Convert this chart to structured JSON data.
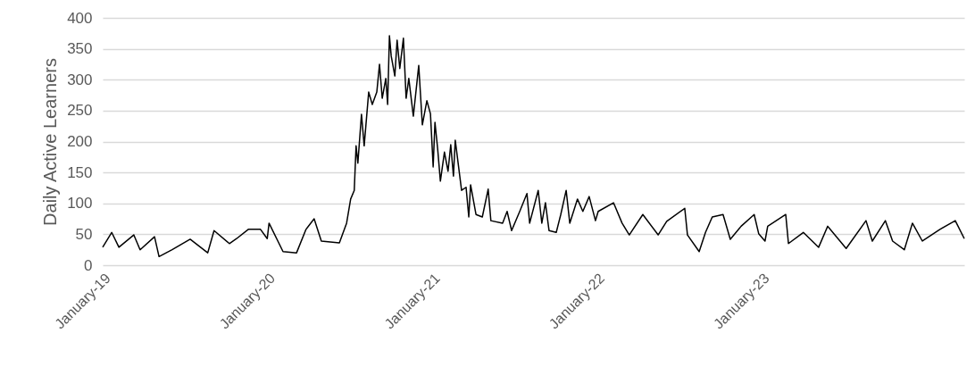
{
  "chart_data": {
    "type": "line",
    "ylabel": "Daily Active Learners",
    "xlim": [
      "2019-01-01",
      "2024-03-26"
    ],
    "ylim": [
      0,
      400
    ],
    "xticks": [
      {
        "value": "2019-01-01",
        "label": "January-19"
      },
      {
        "value": "2020-01-01",
        "label": "January-20"
      },
      {
        "value": "2021-01-01",
        "label": "January-21"
      },
      {
        "value": "2022-01-01",
        "label": "January-22"
      },
      {
        "value": "2023-01-01",
        "label": "January-23"
      }
    ],
    "yticks": [
      0,
      50,
      100,
      150,
      200,
      250,
      300,
      350,
      400
    ],
    "grid": "y",
    "marker": "none",
    "line_style": "solid",
    "x": [
      "2019-01-01",
      "2019-01-21",
      "2019-02-06",
      "2019-03-11",
      "2019-03-25",
      "2019-04-26",
      "2019-05-06",
      "2019-06-04",
      "2019-07-14",
      "2019-08-22",
      "2019-09-05",
      "2019-10-09",
      "2019-10-25",
      "2019-11-20",
      "2019-12-17",
      "2020-01-01",
      "2020-01-05",
      "2020-02-05",
      "2020-03-06",
      "2020-03-27",
      "2020-04-14",
      "2020-04-30",
      "2020-06-09",
      "2020-06-25",
      "2020-07-04",
      "2020-07-12",
      "2020-07-16",
      "2020-07-20",
      "2020-07-28",
      "2020-08-03",
      "2020-08-13",
      "2020-08-21",
      "2020-08-31",
      "2020-09-06",
      "2020-09-12",
      "2020-09-20",
      "2020-09-24",
      "2020-09-28",
      "2020-10-02",
      "2020-10-10",
      "2020-10-15",
      "2020-10-21",
      "2020-10-29",
      "2020-11-04",
      "2020-11-10",
      "2020-11-20",
      "2020-12-02",
      "2020-12-10",
      "2020-12-20",
      "2020-12-28",
      "2021-01-03",
      "2021-01-07",
      "2021-01-13",
      "2021-01-19",
      "2021-01-28",
      "2021-02-05",
      "2021-02-11",
      "2021-02-17",
      "2021-02-21",
      "2021-03-07",
      "2021-03-17",
      "2021-03-23",
      "2021-03-27",
      "2021-04-08",
      "2021-04-22",
      "2021-05-05",
      "2021-05-11",
      "2021-06-06",
      "2021-06-16",
      "2021-06-26",
      "2021-07-14",
      "2021-07-30",
      "2021-08-05",
      "2021-08-24",
      "2021-09-01",
      "2021-09-09",
      "2021-09-17",
      "2021-10-03",
      "2021-10-13",
      "2021-10-25",
      "2021-11-02",
      "2021-11-19",
      "2021-12-01",
      "2021-12-15",
      "2021-12-29",
      "2022-01-04",
      "2022-02-07",
      "2022-02-26",
      "2022-03-14",
      "2022-04-13",
      "2022-05-17",
      "2022-06-05",
      "2022-07-15",
      "2022-07-21",
      "2022-08-16",
      "2022-08-30",
      "2022-09-14",
      "2022-10-08",
      "2022-10-24",
      "2022-11-17",
      "2022-12-16",
      "2022-12-26",
      "2023-01-09",
      "2023-01-15",
      "2023-02-24",
      "2023-03-02",
      "2023-04-04",
      "2023-05-08",
      "2023-05-28",
      "2023-07-08",
      "2023-08-21",
      "2023-09-04",
      "2023-10-03",
      "2023-10-19",
      "2023-11-14",
      "2023-12-02",
      "2023-12-24",
      "2024-02-01",
      "2024-03-06",
      "2024-03-26"
    ],
    "series": [
      {
        "color": "#000000",
        "values": [
          29,
          53,
          29,
          49,
          25,
          46,
          14,
          25,
          42,
          20,
          56,
          35,
          43,
          58,
          58,
          43,
          68,
          22,
          20,
          58,
          75,
          39,
          36,
          68,
          107,
          121,
          193,
          165,
          244,
          193,
          280,
          260,
          280,
          325,
          270,
          302,
          260,
          371,
          338,
          306,
          364,
          318,
          367,
          270,
          302,
          241,
          323,
          227,
          266,
          245,
          159,
          231,
          188,
          136,
          183,
          152,
          195,
          144,
          202,
          121,
          126,
          78,
          130,
          82,
          78,
          123,
          72,
          68,
          87,
          56,
          87,
          116,
          68,
          121,
          68,
          101,
          56,
          53,
          82,
          121,
          68,
          107,
          87,
          111,
          72,
          87,
          101,
          68,
          49,
          82,
          49,
          71,
          92,
          49,
          22,
          53,
          78,
          82,
          42,
          63,
          82,
          51,
          39,
          63,
          82,
          35,
          53,
          29,
          63,
          27,
          72,
          39,
          72,
          39,
          25,
          68,
          39,
          58,
          72,
          43
        ]
      }
    ]
  }
}
